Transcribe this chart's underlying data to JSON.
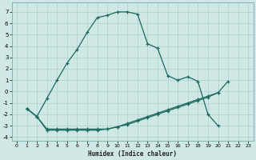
{
  "xlabel": "Humidex (Indice chaleur)",
  "bg_color": "#cfe8e5",
  "grid_color": "#aecfcc",
  "line_color": "#1a6b5a",
  "xlim": [
    -0.5,
    23.5
  ],
  "ylim": [
    -4.3,
    7.8
  ],
  "xticks": [
    0,
    1,
    2,
    3,
    4,
    5,
    6,
    7,
    8,
    9,
    10,
    11,
    12,
    13,
    14,
    15,
    16,
    17,
    18,
    19,
    20,
    21,
    22,
    23
  ],
  "yticks": [
    -4,
    -3,
    -2,
    -1,
    0,
    1,
    2,
    3,
    4,
    5,
    6,
    7
  ],
  "c1x": [
    1,
    2,
    3,
    4,
    5,
    6,
    7,
    8,
    9,
    10,
    11,
    12,
    13,
    14,
    15,
    16,
    17,
    18,
    19,
    20,
    21,
    22,
    23
  ],
  "c1y": [
    -1.5,
    -2.2,
    -0.6,
    1.0,
    2.5,
    3.7,
    5.2,
    6.5,
    6.7,
    7.0,
    7.0,
    6.8,
    4.2,
    3.8,
    1.4,
    1.0,
    1.3,
    0.9,
    -2.0,
    -3.0,
    null,
    null,
    null
  ],
  "c2x": [
    1,
    2,
    3,
    4,
    5,
    6,
    7,
    8,
    9,
    10,
    11,
    12,
    13,
    14,
    15,
    16,
    17,
    18,
    19,
    20,
    21
  ],
  "c2y": [
    -1.5,
    -2.2,
    -3.3,
    -3.3,
    -3.3,
    -3.3,
    -3.3,
    -3.3,
    -3.3,
    -3.1,
    -2.8,
    -2.5,
    -2.2,
    -1.9,
    -1.6,
    -1.3,
    -1.0,
    -0.7,
    -0.4,
    -0.1,
    0.9
  ],
  "c3x": [
    1,
    2,
    3,
    4,
    5,
    6,
    7,
    8,
    9,
    10,
    11,
    12,
    13,
    14,
    15,
    16,
    17,
    18,
    19,
    20
  ],
  "c3y": [
    -1.5,
    -2.2,
    -3.4,
    -3.4,
    -3.4,
    -3.4,
    -3.4,
    -3.4,
    -3.3,
    -3.1,
    -2.9,
    -2.6,
    -2.3,
    -2.0,
    -1.7,
    -1.4,
    -1.1,
    -0.8,
    -0.5,
    -0.1
  ]
}
